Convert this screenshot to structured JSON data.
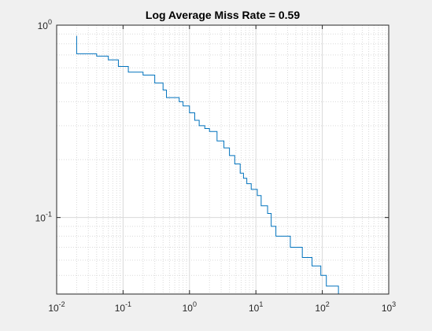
{
  "figure": {
    "background": "#f0f0f0",
    "axes_background": "#ffffff"
  },
  "chart_data": {
    "type": "line",
    "title": "Log Average Miss Rate = 0.59",
    "xlabel": "",
    "ylabel": "",
    "xscale": "log",
    "yscale": "log",
    "xlim": [
      0.01,
      1000
    ],
    "ylim": [
      0.04,
      1
    ],
    "grid": true,
    "minor_grid": true,
    "x_ticks": [
      {
        "base": "10",
        "exp": "-2"
      },
      {
        "base": "10",
        "exp": "-1"
      },
      {
        "base": "10",
        "exp": "0"
      },
      {
        "base": "10",
        "exp": "1"
      },
      {
        "base": "10",
        "exp": "2"
      },
      {
        "base": "10",
        "exp": "3"
      }
    ],
    "y_ticks": [
      {
        "base": "10",
        "exp": "-1"
      },
      {
        "base": "10",
        "exp": "0"
      }
    ],
    "series": [
      {
        "color": "#0072bd",
        "step": true,
        "x": [
          0.02,
          0.02,
          0.04,
          0.06,
          0.085,
          0.12,
          0.2,
          0.3,
          0.4,
          0.45,
          0.7,
          0.8,
          1.0,
          1.2,
          1.4,
          1.7,
          2.0,
          2.6,
          3.3,
          4.0,
          4.8,
          5.8,
          6.5,
          7.3,
          8.5,
          10.5,
          12.0,
          15.0,
          17.0,
          20.0,
          33.0,
          50.0,
          70.0,
          95.0,
          115.0,
          175.0
        ],
        "y": [
          0.88,
          0.71,
          0.69,
          0.66,
          0.61,
          0.57,
          0.55,
          0.5,
          0.46,
          0.42,
          0.4,
          0.38,
          0.35,
          0.32,
          0.3,
          0.29,
          0.28,
          0.25,
          0.23,
          0.21,
          0.19,
          0.17,
          0.16,
          0.15,
          0.14,
          0.13,
          0.115,
          0.105,
          0.09,
          0.08,
          0.07,
          0.062,
          0.056,
          0.05,
          0.044,
          0.04
        ]
      }
    ]
  }
}
